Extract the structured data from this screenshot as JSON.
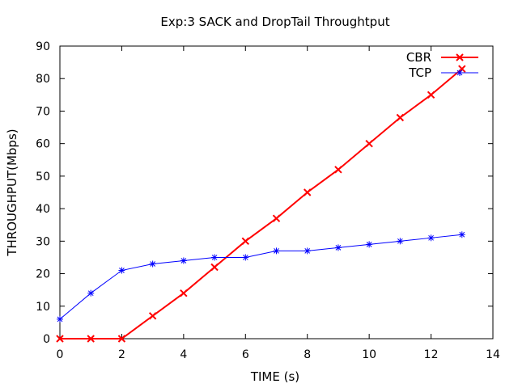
{
  "chart_data": {
    "type": "line",
    "title": "Exp:3 SACK and DropTail Throughtput",
    "xlabel": "TIME (s)",
    "ylabel": "THROUGHPUT(Mbps)",
    "xlim": [
      0,
      14
    ],
    "ylim": [
      0,
      90
    ],
    "xticks": [
      0,
      2,
      4,
      6,
      8,
      10,
      12,
      14
    ],
    "yticks": [
      0,
      10,
      20,
      30,
      40,
      50,
      60,
      70,
      80,
      90
    ],
    "grid": false,
    "legend_position": "top-right",
    "series": [
      {
        "name": "CBR",
        "color": "#ff0000",
        "marker": "x",
        "x": [
          0,
          1,
          2,
          3,
          4,
          5,
          6,
          7,
          8,
          9,
          10,
          11,
          12,
          13
        ],
        "y": [
          0,
          0,
          0,
          7,
          14,
          22,
          30,
          37,
          45,
          52,
          60,
          68,
          75,
          83
        ]
      },
      {
        "name": "TCP",
        "color": "#0000ff",
        "marker": "star",
        "x": [
          0,
          1,
          2,
          3,
          4,
          5,
          6,
          7,
          8,
          9,
          10,
          11,
          12,
          13
        ],
        "y": [
          6,
          14,
          21,
          23,
          24,
          25,
          25,
          27,
          27,
          28,
          29,
          30,
          31,
          32
        ]
      }
    ]
  }
}
